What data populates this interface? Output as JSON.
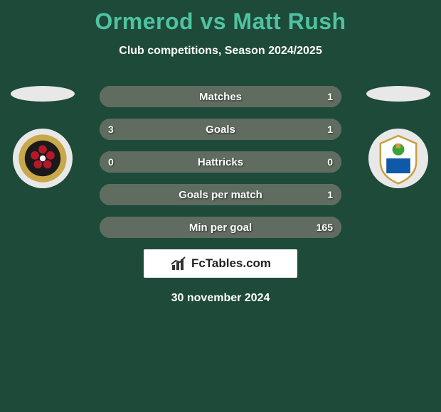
{
  "header": {
    "title": "Ormerod vs Matt Rush",
    "title_color": "#4fc3a1",
    "title_fontsize": 32,
    "subtitle": "Club competitions, Season 2024/2025",
    "subtitle_color": "#ffffff",
    "subtitle_fontsize": 16
  },
  "background_color": "#1e4a3a",
  "player_left": {
    "name": "Ormerod",
    "crest_bg": "#e8e8e8",
    "crest_inner_primary": "#c9a84a",
    "crest_inner_dark": "#1a1a1a",
    "crest_flower": "#b5182a"
  },
  "player_right": {
    "name": "Matt Rush",
    "crest_bg": "#e8e8e8",
    "crest_shield": "#ffffff",
    "crest_accent_blue": "#0e5aa8",
    "crest_accent_green": "#3aa23a",
    "crest_accent_gold": "#c8a040"
  },
  "bar_style": {
    "height": 30,
    "radius": 15,
    "gap": 16,
    "label_color": "#ffffff",
    "label_fontsize": 15,
    "val_fontsize": 14,
    "base_bg": "#889488",
    "fill_color": "#606c60"
  },
  "stats": [
    {
      "label": "Matches",
      "left_val": "",
      "right_val": "1",
      "left_pct": 0,
      "right_pct": 100
    },
    {
      "label": "Goals",
      "left_val": "3",
      "right_val": "1",
      "left_pct": 75,
      "right_pct": 25
    },
    {
      "label": "Hattricks",
      "left_val": "0",
      "right_val": "0",
      "left_pct": 50,
      "right_pct": 50
    },
    {
      "label": "Goals per match",
      "left_val": "",
      "right_val": "1",
      "left_pct": 0,
      "right_pct": 100
    },
    {
      "label": "Min per goal",
      "left_val": "",
      "right_val": "165",
      "left_pct": 0,
      "right_pct": 100
    }
  ],
  "brand": {
    "text": "FcTables.com",
    "box_bg": "#ffffff",
    "text_color": "#222222",
    "fontsize": 17
  },
  "footer": {
    "date": "30 november 2024",
    "color": "#ffffff",
    "fontsize": 16
  }
}
